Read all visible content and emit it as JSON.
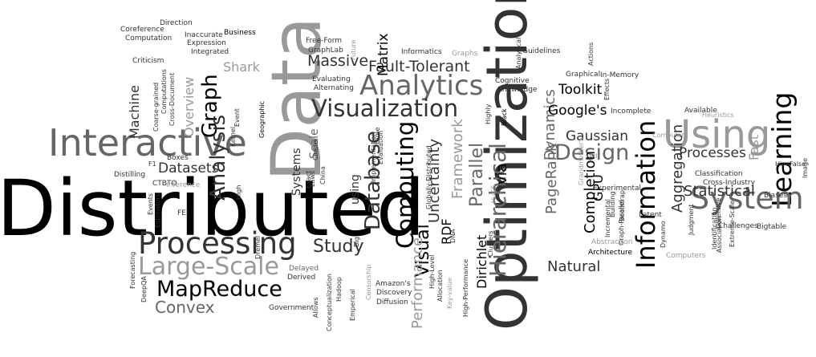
{
  "colors": {
    "black": "#000000",
    "dark": "#333333",
    "mid": "#666666",
    "light": "#999999",
    "faint": "#bbbbbb"
  },
  "words": [
    "Distributed",
    "Data",
    "Optimization",
    "Using",
    "Interactive",
    "Processing",
    "Learning",
    "Information",
    "System",
    "Analytics",
    "Visualization",
    "Computing",
    "Hierarchical",
    "Large-Scale",
    "MapReduce",
    "Design",
    "Database",
    "Graph",
    "Analysis",
    "Massive",
    "Fault-Tolerant",
    "Study",
    "Convex",
    "Matrix",
    "Parallel",
    "Visual",
    "Framework",
    "Performance",
    "Uncertainty",
    "Dynamics",
    "PageRank",
    "Completion",
    "Aggregation",
    "Statistical",
    "Gaussian",
    "Processes",
    "Natural",
    "Toolkit",
    "Google's",
    "Datasets",
    "Machine",
    "Shark",
    "Overview",
    "Systems",
    "Scale",
    "using",
    "via",
    "Dirichlet",
    "RDF",
    "Fast",
    "GPU",
    "Direction",
    "Coreference",
    "Computation",
    "Inaccurate",
    "Business",
    "Expression",
    "Integrated",
    "Criticism",
    "Free-Form",
    "GraphLab",
    "Future",
    "Informatics",
    "Graphs",
    "Analytical",
    "Guidelines",
    "Actions",
    "Graphical",
    "In-Memory",
    "Cognitive",
    "Knowledge",
    "Evaluating",
    "Alternating",
    "Coarse-grained",
    "Cross-Document",
    "Computations",
    "Geographic",
    "Event",
    "Kernel",
    "Cluster",
    "Exact",
    "Laws",
    "China",
    "Implementation",
    "Fame",
    "Evaluation",
    "Globally-Distributed",
    "Highly",
    "Black",
    "Effects",
    "Incomplete",
    "Available",
    "Heuristics",
    "Computer",
    "Boxes",
    "F1",
    "Distilling",
    "CTBTO",
    "Inference",
    "Events",
    "FEI",
    "High",
    "Estimators",
    "Dremel",
    "Big",
    "HuGS",
    "DNA",
    "Grandmother's",
    "Building",
    "Bootstrap",
    "Ad",
    "10",
    "Incremental",
    "Graph-Parallel",
    "Latent",
    "Dynamo",
    "Judgment",
    "Association",
    "Collective",
    "Identification",
    "Classification",
    "Cross-Industry",
    "Biases",
    "Hive",
    "False",
    "Image",
    "Extreme-Scale",
    "Bigtable",
    "Challenges",
    "Forecasting",
    "DeepQA",
    "Delayed",
    "Derived",
    "Hadoop",
    "Amazon's",
    "Discovery",
    "Diffusion",
    "Government",
    "Allows",
    "Conceptualization",
    "Emperical",
    "Censorship",
    "High-Level",
    "Allocation",
    "Key-value",
    "High-Performance",
    "Clusters",
    "Abstraction",
    "Architecture",
    "Computers",
    "Experimental"
  ]
}
